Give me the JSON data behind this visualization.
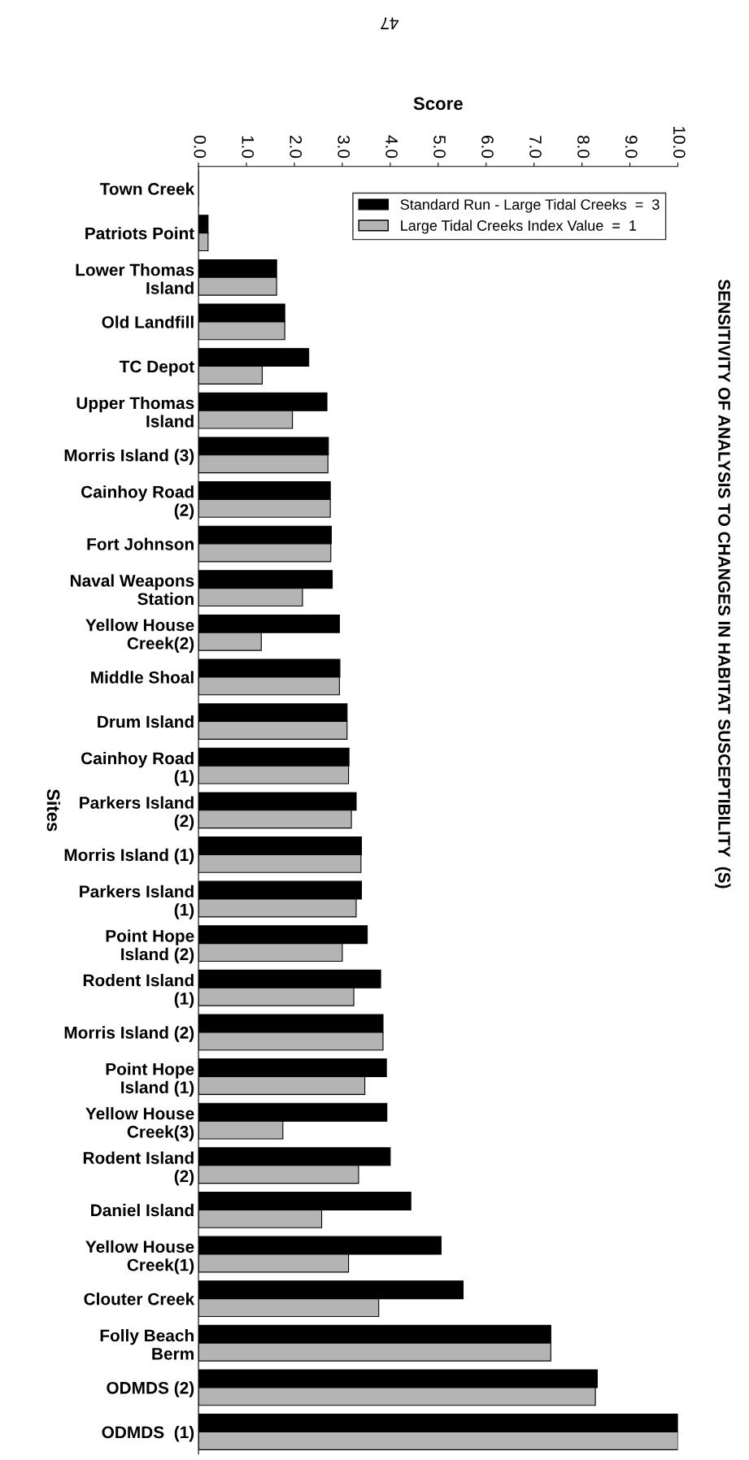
{
  "chart_data": {
    "type": "bar",
    "orientation": "horizontal",
    "title": "SENSITIVITY OF ANALYSIS TO CHANGES IN HABITAT SUSCEPTIBILITY  (S)",
    "xlabel": "Score",
    "ylabel": "Sites",
    "annotations": [
      "47"
    ],
    "categories": [
      "Town Creek",
      "Patriots Point",
      "Lower Thomas\nIsland",
      "Old Landfill",
      "TC Depot",
      "Upper Thomas\nIsland",
      "Morris Island (3)",
      "Cainhoy Road\n(2)",
      "Fort Johnson",
      "Naval Weapons\nStation",
      "Yellow House\nCreek(2)",
      "Middle Shoal",
      "Drum Island",
      "Cainhoy Road\n(1)",
      "Parkers Island\n(2)",
      "Morris Island (1)",
      "Parkers Island\n(1)",
      "Point Hope\nIsland (2)",
      "Rodent Island\n(1)",
      "Morris Island (2)",
      "Point Hope\nIsland (1)",
      "Yellow House\nCreek(3)",
      "Rodent Island\n(2)",
      "Daniel Island",
      "Yellow House\nCreek(1)",
      "Clouter Creek",
      "Folly Beach\nBerm",
      "ODMDS (2)",
      "ODMDS  (1)"
    ],
    "series": [
      {
        "name": "Standard Run - Large Tidal Creeks  =  3",
        "color": "#000000",
        "values": [
          0,
          0.2,
          1.63,
          1.8,
          2.3,
          2.68,
          2.71,
          2.75,
          2.77,
          2.79,
          2.94,
          2.95,
          3.1,
          3.14,
          3.29,
          3.4,
          3.4,
          3.52,
          3.8,
          3.85,
          3.92,
          3.93,
          4.0,
          4.43,
          5.06,
          5.52,
          7.35,
          8.32,
          10.0
        ]
      },
      {
        "name": "Large Tidal Creeks Index Value  =  1",
        "color": "#b4b4b4",
        "values": [
          0,
          0.2,
          1.63,
          1.8,
          1.33,
          1.96,
          2.7,
          2.75,
          2.76,
          2.17,
          1.31,
          2.94,
          3.1,
          3.13,
          3.19,
          3.39,
          3.29,
          3.0,
          3.24,
          3.85,
          3.47,
          1.76,
          3.34,
          2.57,
          3.13,
          3.76,
          7.35,
          8.28,
          10.0
        ]
      }
    ],
    "xlim": [
      0,
      10
    ],
    "xticks": [
      {
        "value": 0,
        "label": "0.0"
      },
      {
        "value": 1,
        "label": "1.0"
      },
      {
        "value": 2,
        "label": "2.0"
      },
      {
        "value": 3,
        "label": "3.0"
      },
      {
        "value": 4,
        "label": "4.0"
      },
      {
        "value": 5,
        "label": "5.0"
      },
      {
        "value": 6,
        "label": "6.0"
      },
      {
        "value": 7,
        "label": "7.0"
      },
      {
        "value": 8,
        "label": "8.0"
      },
      {
        "value": 9,
        "label": "9.0"
      },
      {
        "value": 10,
        "label": "10.0"
      }
    ],
    "legend": "top right",
    "grid": false
  }
}
